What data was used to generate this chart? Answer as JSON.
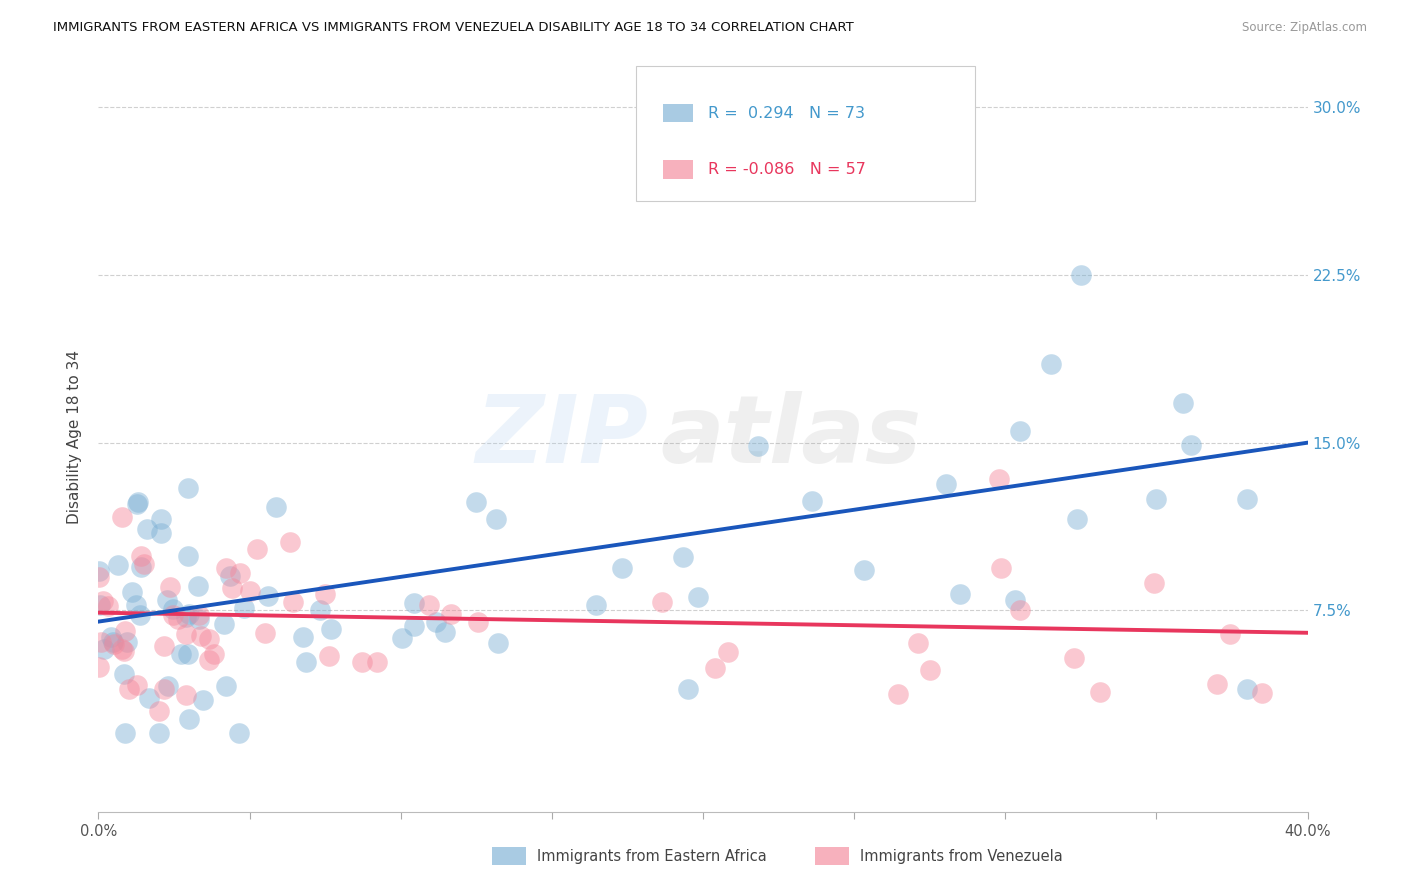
{
  "title": "IMMIGRANTS FROM EASTERN AFRICA VS IMMIGRANTS FROM VENEZUELA DISABILITY AGE 18 TO 34 CORRELATION CHART",
  "source": "Source: ZipAtlas.com",
  "ylabel": "Disability Age 18 to 34",
  "color_blue": "#7BAFD4",
  "color_pink": "#F4879A",
  "color_blue_line": "#1A56BB",
  "color_pink_line": "#E8365D",
  "watermark_zip": "ZIP",
  "watermark_atlas": "atlas",
  "xlim": [
    0.0,
    0.4
  ],
  "ylim": [
    -0.015,
    0.32
  ],
  "ytick_vals": [
    0.075,
    0.15,
    0.225,
    0.3
  ],
  "ytick_labels": [
    "7.5%",
    "15.0%",
    "22.5%",
    "30.0%"
  ],
  "blue_line_x0": 0.0,
  "blue_line_y0": 0.07,
  "blue_line_x1": 0.4,
  "blue_line_y1": 0.15,
  "pink_line_x0": 0.0,
  "pink_line_y0": 0.074,
  "pink_line_x1": 0.4,
  "pink_line_y1": 0.065,
  "legend1": "R =  0.294   N = 73",
  "legend2": "R = -0.086   N = 57",
  "label_blue": "Immigrants from Eastern Africa",
  "label_pink": "Immigrants from Venezuela"
}
